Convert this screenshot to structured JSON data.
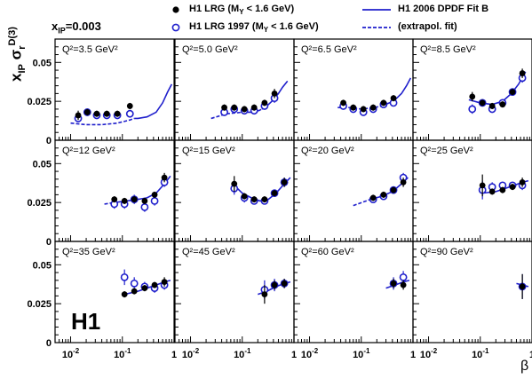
{
  "header": {
    "xip_label": "x",
    "xip_sub": "IP",
    "xip_value": "=0.003",
    "legend": [
      {
        "text": "H1 LRG (M",
        "sub": "Y",
        "tail": " < 1.6 GeV)",
        "style": "filled-circle"
      },
      {
        "text": "H1 LRG 1997 (M",
        "sub": "Y",
        "tail": " < 1.6 GeV)",
        "style": "open-circle"
      },
      {
        "text": "H1 2006 DPDF Fit B",
        "style": "solid-line"
      },
      {
        "text": "(extrapol. fit)",
        "style": "dashed-line"
      }
    ]
  },
  "ylabel": {
    "x": "x",
    "sub": "IP",
    "sigma": "σ",
    "r": "r",
    "sup": "D(3)"
  },
  "xlabel": "β",
  "logo": "H1",
  "colors": {
    "h1": "#000000",
    "h197": "#1f1fcc",
    "fit": "#1f1fcc"
  },
  "chart_data": {
    "type": "scatter",
    "title": "",
    "xlabel": "β",
    "ylabel": "xIP σr D(3)",
    "x_scale": "log",
    "xlim": [
      0.005,
      1
    ],
    "ylim": [
      0,
      0.065
    ],
    "x_tick_labels": [
      "10-2",
      "10-1",
      "1"
    ],
    "y_tick_labels": [
      "0",
      "0.025",
      "0.05"
    ],
    "grid": false,
    "legend_position": "top",
    "panels": [
      {
        "label": "Q²=3.5 GeV²",
        "h1": {
          "x": [
            0.014,
            0.021,
            0.032,
            0.05,
            0.08,
            0.14
          ],
          "y": [
            0.016,
            0.018,
            0.017,
            0.017,
            0.017,
            0.022
          ],
          "err": [
            0.003,
            0.002,
            0.002,
            0.002,
            0.002,
            0.002
          ]
        },
        "h197": {
          "x": [
            0.014,
            0.021,
            0.032,
            0.05,
            0.08,
            0.14
          ],
          "y": [
            0.014,
            0.018,
            0.016,
            0.016,
            0.016,
            0.017
          ],
          "err": [
            0.002,
            0.002,
            0.002,
            0.002,
            0.002,
            0.002
          ]
        },
        "fit": {
          "x": [
            0.17,
            0.2,
            0.3,
            0.45,
            0.6,
            0.75,
            0.9
          ],
          "y": [
            0.014,
            0.014,
            0.015,
            0.018,
            0.024,
            0.031,
            0.036
          ]
        },
        "extrap": {
          "x": [
            0.01,
            0.02,
            0.04,
            0.08,
            0.14,
            0.17
          ],
          "y": [
            0.011,
            0.01,
            0.01,
            0.011,
            0.013,
            0.014
          ]
        }
      },
      {
        "label": "Q²=5.0 GeV²",
        "h1": {
          "x": [
            0.045,
            0.07,
            0.11,
            0.17,
            0.27,
            0.42
          ],
          "y": [
            0.021,
            0.021,
            0.02,
            0.021,
            0.024,
            0.03
          ],
          "err": [
            0.002,
            0.002,
            0.002,
            0.002,
            0.002,
            0.003
          ]
        },
        "h197": {
          "x": [
            0.045,
            0.07,
            0.11,
            0.17,
            0.27,
            0.42
          ],
          "y": [
            0.018,
            0.02,
            0.019,
            0.019,
            0.022,
            0.027
          ],
          "err": [
            0.002,
            0.002,
            0.002,
            0.002,
            0.002,
            0.003
          ]
        },
        "fit": {
          "x": [
            0.24,
            0.3,
            0.4,
            0.5,
            0.6,
            0.75
          ],
          "y": [
            0.02,
            0.022,
            0.026,
            0.03,
            0.034,
            0.038
          ]
        },
        "extrap": {
          "x": [
            0.025,
            0.05,
            0.1,
            0.18,
            0.24
          ],
          "y": [
            0.014,
            0.017,
            0.018,
            0.018,
            0.02
          ]
        }
      },
      {
        "label": "Q²=6.5 GeV²",
        "h1": {
          "x": [
            0.045,
            0.07,
            0.11,
            0.17,
            0.27,
            0.42
          ],
          "y": [
            0.024,
            0.021,
            0.02,
            0.021,
            0.024,
            0.027
          ],
          "err": [
            0.002,
            0.002,
            0.002,
            0.002,
            0.002,
            0.002
          ]
        },
        "h197": {
          "x": [
            0.045,
            0.07,
            0.11,
            0.17,
            0.27,
            0.42
          ],
          "y": [
            0.022,
            0.02,
            0.018,
            0.02,
            0.023,
            0.024
          ],
          "err": [
            0.002,
            0.002,
            0.002,
            0.002,
            0.002,
            0.002
          ]
        },
        "fit": {
          "x": [
            0.25,
            0.35,
            0.45,
            0.6,
            0.75,
            0.9
          ],
          "y": [
            0.022,
            0.024,
            0.026,
            0.03,
            0.035,
            0.04
          ]
        },
        "extrap": {
          "x": [
            0.035,
            0.06,
            0.1,
            0.18,
            0.25
          ],
          "y": [
            0.021,
            0.021,
            0.02,
            0.021,
            0.022
          ]
        }
      },
      {
        "label": "Q²=8.5 GeV²",
        "h1": {
          "x": [
            0.07,
            0.11,
            0.17,
            0.27,
            0.42,
            0.65
          ],
          "y": [
            0.028,
            0.024,
            0.022,
            0.023,
            0.031,
            0.043
          ],
          "err": [
            0.003,
            0.002,
            0.002,
            0.002,
            0.002,
            0.003
          ]
        },
        "h197": {
          "x": [
            0.07,
            0.11,
            0.17,
            0.27,
            0.42,
            0.65
          ],
          "y": [
            0.02,
            0.024,
            0.02,
            0.024,
            0.031,
            0.04
          ],
          "err": [
            0.003,
            0.002,
            0.002,
            0.002,
            0.002,
            0.003
          ]
        },
        "fit": {
          "x": [
            0.06,
            0.1,
            0.17,
            0.27,
            0.4,
            0.55,
            0.75
          ],
          "y": [
            0.026,
            0.024,
            0.023,
            0.025,
            0.03,
            0.036,
            0.044
          ]
        },
        "extrap": {
          "x": [],
          "y": []
        }
      },
      {
        "label": "Q²=12 GeV²",
        "h1": {
          "x": [
            0.07,
            0.11,
            0.17,
            0.27,
            0.42,
            0.65
          ],
          "y": [
            0.027,
            0.026,
            0.027,
            0.026,
            0.03,
            0.041
          ],
          "err": [
            0.002,
            0.002,
            0.002,
            0.002,
            0.002,
            0.003
          ]
        },
        "h197": {
          "x": [
            0.07,
            0.11,
            0.17,
            0.27,
            0.42,
            0.65
          ],
          "y": [
            0.024,
            0.024,
            0.027,
            0.022,
            0.026,
            0.038
          ],
          "err": [
            0.003,
            0.003,
            0.003,
            0.003,
            0.003,
            0.003
          ]
        },
        "fit": {
          "x": [
            0.07,
            0.12,
            0.2,
            0.3,
            0.45,
            0.65,
            0.85
          ],
          "y": [
            0.025,
            0.026,
            0.027,
            0.028,
            0.031,
            0.037,
            0.042
          ]
        },
        "extrap": {
          "x": [
            0.045,
            0.07
          ],
          "y": [
            0.024,
            0.025
          ]
        }
      },
      {
        "label": "Q²=15 GeV²",
        "h1": {
          "x": [
            0.07,
            0.11,
            0.17,
            0.27,
            0.42,
            0.65
          ],
          "y": [
            0.037,
            0.029,
            0.027,
            0.027,
            0.031,
            0.038
          ],
          "err": [
            0.005,
            0.002,
            0.002,
            0.002,
            0.002,
            0.003
          ]
        },
        "h197": {
          "x": [
            0.07,
            0.11,
            0.17,
            0.27,
            0.42,
            0.65
          ],
          "y": [
            0.034,
            0.028,
            0.026,
            0.026,
            0.031,
            0.038
          ],
          "err": [
            0.004,
            0.003,
            0.002,
            0.002,
            0.002,
            0.003
          ]
        },
        "fit": {
          "x": [
            0.065,
            0.1,
            0.15,
            0.22,
            0.32,
            0.45,
            0.65,
            0.85
          ],
          "y": [
            0.037,
            0.031,
            0.028,
            0.026,
            0.027,
            0.031,
            0.037,
            0.041
          ]
        },
        "extrap": {
          "x": [],
          "y": []
        }
      },
      {
        "label": "Q²=20 GeV²",
        "h1": {
          "x": [
            0.17,
            0.27,
            0.42,
            0.65
          ],
          "y": [
            0.028,
            0.03,
            0.033,
            0.038
          ],
          "err": [
            0.002,
            0.002,
            0.002,
            0.003
          ]
        },
        "h197": {
          "x": [
            0.17,
            0.27,
            0.42,
            0.65
          ],
          "y": [
            0.027,
            0.029,
            0.033,
            0.041
          ],
          "err": [
            0.002,
            0.002,
            0.002,
            0.003
          ]
        },
        "fit": {
          "x": [
            0.15,
            0.25,
            0.4,
            0.6,
            0.8
          ],
          "y": [
            0.027,
            0.029,
            0.032,
            0.037,
            0.041
          ]
        },
        "extrap": {
          "x": [
            0.07,
            0.15
          ],
          "y": [
            0.023,
            0.027
          ]
        }
      },
      {
        "label": "Q²=25 GeV²",
        "h1": {
          "x": [
            0.11,
            0.17,
            0.27,
            0.42,
            0.65
          ],
          "y": [
            0.036,
            0.032,
            0.033,
            0.035,
            0.038
          ],
          "err": [
            0.007,
            0.002,
            0.002,
            0.002,
            0.003
          ]
        },
        "h197": {
          "x": [
            0.11,
            0.17,
            0.27,
            0.42,
            0.65
          ],
          "y": [
            0.033,
            0.035,
            0.036,
            0.036,
            0.036
          ],
          "err": [
            0.006,
            0.003,
            0.002,
            0.002,
            0.003
          ]
        },
        "fit": {
          "x": [
            0.11,
            0.2,
            0.3,
            0.45,
            0.65,
            0.85
          ],
          "y": [
            0.031,
            0.032,
            0.034,
            0.036,
            0.038,
            0.039
          ]
        },
        "extrap": {
          "x": [],
          "y": []
        }
      },
      {
        "label": "Q²=35 GeV²",
        "h1": {
          "x": [
            0.11,
            0.17,
            0.27,
            0.42,
            0.65
          ],
          "y": [
            0.031,
            0.033,
            0.035,
            0.037,
            0.039
          ],
          "err": [
            0.002,
            0.002,
            0.002,
            0.002,
            0.003
          ]
        },
        "h197": {
          "x": [
            0.11,
            0.17,
            0.27,
            0.42,
            0.65
          ],
          "y": [
            0.042,
            0.038,
            0.036,
            0.035,
            0.037
          ],
          "err": [
            0.005,
            0.004,
            0.003,
            0.003,
            0.003
          ]
        },
        "fit": {
          "x": [
            0.11,
            0.2,
            0.3,
            0.45,
            0.65,
            0.85
          ],
          "y": [
            0.031,
            0.033,
            0.035,
            0.037,
            0.039,
            0.04
          ]
        },
        "extrap": {
          "x": [],
          "y": []
        }
      },
      {
        "label": "Q²=45 GeV²",
        "h1": {
          "x": [
            0.27,
            0.42,
            0.65
          ],
          "y": [
            0.031,
            0.037,
            0.038
          ],
          "err": [
            0.006,
            0.003,
            0.003
          ]
        },
        "h197": {
          "x": [
            0.27,
            0.42,
            0.65
          ],
          "y": [
            0.034,
            0.037,
            0.038
          ],
          "err": [
            0.006,
            0.004,
            0.003
          ]
        },
        "fit": {
          "x": [
            0.2,
            0.3,
            0.45,
            0.65,
            0.85
          ],
          "y": [
            0.031,
            0.033,
            0.036,
            0.038,
            0.039
          ]
        },
        "extrap": {
          "x": [],
          "y": []
        }
      },
      {
        "label": "Q²=60 GeV²",
        "h1": {
          "x": [
            0.42,
            0.65
          ],
          "y": [
            0.038,
            0.037
          ],
          "err": [
            0.003,
            0.003
          ]
        },
        "h197": {
          "x": [
            0.42,
            0.65
          ],
          "y": [
            0.038,
            0.042
          ],
          "err": [
            0.004,
            0.004
          ]
        },
        "fit": {
          "x": [
            0.3,
            0.45,
            0.65,
            0.85
          ],
          "y": [
            0.035,
            0.037,
            0.039,
            0.04
          ]
        },
        "extrap": {
          "x": [],
          "y": []
        }
      },
      {
        "label": "Q²=90 GeV²",
        "h1": {
          "x": [
            0.65
          ],
          "y": [
            0.036
          ],
          "err": [
            0.008
          ]
        },
        "h197": {
          "x": [
            0.65
          ],
          "y": [
            0.036
          ],
          "err": [
            0.008
          ]
        },
        "fit": {
          "x": [
            0.5,
            0.65,
            0.85
          ],
          "y": [
            0.038,
            0.037,
            0.036
          ]
        },
        "extrap": {
          "x": [],
          "y": []
        }
      }
    ]
  }
}
